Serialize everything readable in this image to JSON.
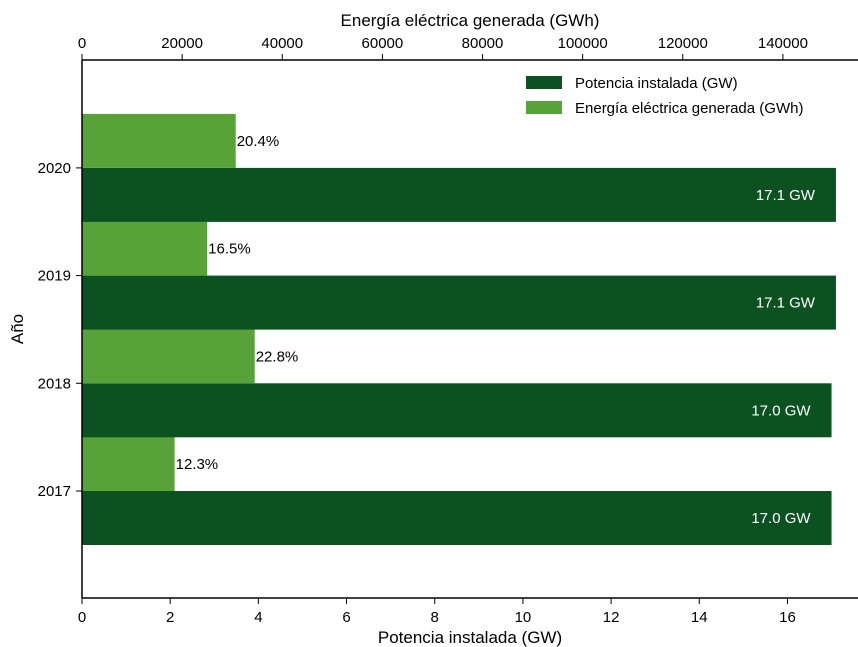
{
  "chart_data": {
    "type": "bar",
    "orientation": "horizontal",
    "title": "",
    "categories": [
      "2017",
      "2018",
      "2019",
      "2020"
    ],
    "ylabel": "Año",
    "series": [
      {
        "name": "Potencia instalada (GW)",
        "axis": "bottom",
        "color": "#0b5220",
        "values": [
          17.0,
          17.0,
          17.1,
          17.1
        ],
        "labels": [
          "17.0 GW",
          "17.0 GW",
          "17.1 GW",
          "17.1 GW"
        ]
      },
      {
        "name": "Energía eléctrica generada (GWh)",
        "axis": "top",
        "color": "#57a338",
        "values": [
          18500,
          34500,
          25000,
          30700
        ],
        "labels": [
          "12.3%",
          "22.8%",
          "16.5%",
          "20.4%"
        ]
      }
    ],
    "x_bottom": {
      "label": "Potencia instalada (GW)",
      "range": [
        0,
        17.6
      ],
      "ticks": [
        0,
        2,
        4,
        6,
        8,
        10,
        12,
        14,
        16
      ]
    },
    "x_top": {
      "label": "Energía eléctrica generada (GWh)",
      "range": [
        0,
        155000
      ],
      "ticks": [
        0,
        20000,
        40000,
        60000,
        80000,
        100000,
        120000,
        140000
      ]
    },
    "legend_position": "top-right",
    "grid": false
  }
}
